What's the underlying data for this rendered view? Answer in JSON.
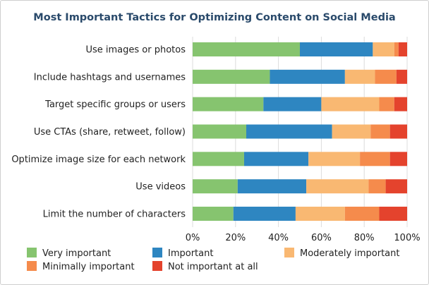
{
  "chart_data": {
    "type": "bar",
    "orientation": "horizontal",
    "stacked": true,
    "title": "Most Important Tactics for Optimizing Content on Social Media",
    "categories": [
      "Use images or photos",
      "Include hashtags and usernames",
      "Target specific groups or users",
      "Use CTAs (share, retweet, follow)",
      "Optimize image size for each network",
      "Use videos",
      "Limit the number of characters"
    ],
    "series": [
      {
        "name": "Very important",
        "color": "#86c46f",
        "values": [
          50,
          36,
          33,
          25,
          24,
          21,
          19
        ]
      },
      {
        "name": "Important",
        "color": "#2e86c1",
        "values": [
          34,
          35,
          27,
          40,
          30,
          32,
          29
        ]
      },
      {
        "name": "Moderately important",
        "color": "#f9b872",
        "values": [
          10,
          14,
          27,
          18,
          24,
          29,
          23
        ]
      },
      {
        "name": "Minimally important",
        "color": "#f58b4c",
        "values": [
          2,
          10,
          7,
          9,
          14,
          8,
          16
        ]
      },
      {
        "name": "Not important at all",
        "color": "#e4432d",
        "values": [
          4,
          5,
          6,
          8,
          8,
          10,
          13
        ]
      }
    ],
    "x_ticks": [
      "0%",
      "20%",
      "40%",
      "60%",
      "80%",
      "100%"
    ],
    "xlim": [
      0,
      100
    ],
    "grid": true,
    "legend_position": "bottom"
  }
}
